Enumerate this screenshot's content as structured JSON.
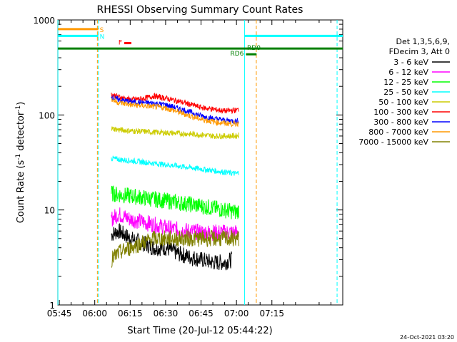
{
  "chart_data": {
    "type": "line",
    "title": "RHESSI Observing Summary Count Rates",
    "xlabel": "Start Time (20-Jul-12 05:44:22)",
    "ylabel_main": "Count Rate (s",
    "ylabel_sup1": "-1",
    "ylabel_mid": " detector",
    "ylabel_sup2": "-1",
    "ylabel_end": ")",
    "x_start_minutes": 344.367,
    "xlim_minutes": [
      344.367,
      465.0
    ],
    "ylim": [
      1,
      1000
    ],
    "yscale": "log",
    "x_ticks": [
      {
        "label": "05:45",
        "minutes": 345
      },
      {
        "label": "06:00",
        "minutes": 360
      },
      {
        "label": "06:15",
        "minutes": 375
      },
      {
        "label": "06:30",
        "minutes": 390
      },
      {
        "label": "06:45",
        "minutes": 405
      },
      {
        "label": "07:00",
        "minutes": 420
      },
      {
        "label": "07:15",
        "minutes": 435
      }
    ],
    "y_ticks": [
      {
        "label": "1",
        "value": 1
      },
      {
        "label": "10",
        "value": 10
      },
      {
        "label": "100",
        "value": 100
      },
      {
        "label": "1000",
        "value": 1000
      }
    ],
    "legend_header": [
      "Det 1,3,5,6,9,",
      "FDecim 3, Att 0"
    ],
    "series": [
      {
        "name": "3 - 6 keV",
        "color": "#000000",
        "x": [
          367,
          370,
          375,
          380,
          385,
          390,
          395,
          400,
          405,
          410,
          415,
          418
        ],
        "values": [
          5.5,
          6,
          5,
          4.5,
          4,
          4,
          3.5,
          3.2,
          3,
          2.8,
          2.8,
          3
        ]
      },
      {
        "name": "6 - 12 keV",
        "color": "#ff00ff",
        "x": [
          367,
          370,
          375,
          380,
          385,
          390,
          395,
          400,
          405,
          410,
          415,
          420,
          421
        ],
        "values": [
          8,
          9,
          8,
          7.5,
          7,
          6.5,
          6.2,
          6,
          5.8,
          5.8,
          5.8,
          5.8,
          6
        ]
      },
      {
        "name": "12 - 25 keV",
        "color": "#00ff00",
        "x": [
          367,
          370,
          375,
          380,
          385,
          390,
          395,
          400,
          405,
          410,
          415,
          420,
          421
        ],
        "values": [
          15,
          14.5,
          14,
          13.5,
          13,
          12.5,
          12,
          11.5,
          11,
          10.5,
          10,
          9.5,
          10
        ]
      },
      {
        "name": "25 - 50 keV",
        "color": "#00ffff",
        "x": [
          367,
          370,
          375,
          380,
          385,
          390,
          395,
          400,
          405,
          410,
          415,
          420,
          421
        ],
        "values": [
          35,
          34,
          33,
          32,
          31,
          30,
          29,
          28,
          27,
          26,
          25,
          24,
          25
        ]
      },
      {
        "name": "50 - 100 keV",
        "color": "#cccc00",
        "x": [
          367,
          370,
          375,
          380,
          385,
          390,
          395,
          400,
          405,
          410,
          415,
          420,
          421
        ],
        "values": [
          72,
          70,
          68,
          67,
          66,
          65,
          64,
          63,
          62,
          60,
          60,
          60,
          62
        ]
      },
      {
        "name": "100 - 300 keV",
        "color": "#ff0000",
        "x": [
          367,
          370,
          375,
          380,
          385,
          390,
          395,
          400,
          405,
          410,
          415,
          420,
          421
        ],
        "values": [
          165,
          155,
          145,
          148,
          158,
          150,
          140,
          130,
          120,
          115,
          110,
          112,
          115
        ]
      },
      {
        "name": "300 - 800 keV",
        "color": "#0000ff",
        "x": [
          367,
          370,
          375,
          380,
          385,
          390,
          395,
          400,
          405,
          410,
          415,
          420,
          421
        ],
        "values": [
          155,
          145,
          138,
          135,
          133,
          128,
          118,
          108,
          98,
          92,
          88,
          86,
          88
        ]
      },
      {
        "name": "800 - 7000 keV",
        "color": "#ff9900",
        "x": [
          367,
          370,
          375,
          380,
          385,
          390,
          395,
          400,
          405,
          410,
          415,
          420,
          421
        ],
        "values": [
          145,
          135,
          128,
          125,
          122,
          118,
          108,
          98,
          90,
          85,
          82,
          80,
          82
        ]
      },
      {
        "name": "7000 - 15000 keV",
        "color": "#808000",
        "x": [
          367,
          370,
          375,
          380,
          385,
          390,
          395,
          400,
          405,
          410,
          415,
          420,
          421
        ],
        "values": [
          3,
          3.5,
          4,
          4.5,
          5,
          5,
          5,
          5,
          5,
          5,
          5,
          5,
          5
        ]
      }
    ],
    "flags": [
      {
        "label": "S",
        "color": "#ff9900",
        "x": [
          344.4,
          361.5
        ],
        "y": 800
      },
      {
        "label": "N",
        "color": "#00ffff",
        "x": [
          344.4,
          361.5
        ],
        "y": 680
      },
      {
        "label": "F",
        "color": "#ff0000",
        "x": [
          372.5,
          375.5
        ],
        "y": 570
      },
      {
        "label": "RD0",
        "color": "#008000",
        "x": [
          344.4,
          465.0
        ],
        "y": 500
      },
      {
        "label": "RD6",
        "color": "#008000",
        "x": [
          424,
          428.5
        ],
        "y": 435
      }
    ],
    "flag_lines_after": [
      {
        "color": "#00ffff",
        "x": [
          423.5,
          465.0
        ],
        "y": 680
      }
    ],
    "vlines": [
      {
        "x": 344.4,
        "color": "#00ffff",
        "style": "solid"
      },
      {
        "x": 361.1,
        "color": "#ff9900",
        "style": "dashed"
      },
      {
        "x": 361.6,
        "color": "#00ffff",
        "style": "dashed"
      },
      {
        "x": 423.4,
        "color": "#00ffff",
        "style": "solid"
      },
      {
        "x": 428.4,
        "color": "#ff9900",
        "style": "dashed"
      },
      {
        "x": 462.6,
        "color": "#00ffff",
        "style": "dashed"
      }
    ],
    "grid": false,
    "legend_position": "right",
    "footer_date": "24-Oct-2021 03:20"
  }
}
